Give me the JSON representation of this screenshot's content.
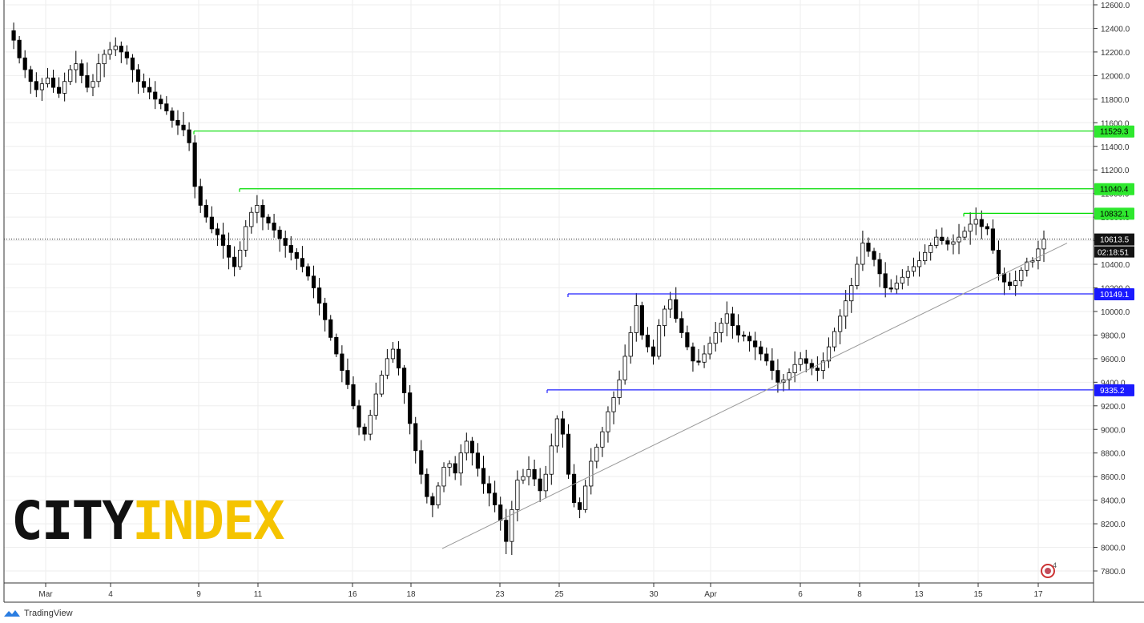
{
  "chart_data": {
    "type": "candlestick",
    "ylim": [
      7700,
      12600
    ],
    "y_ticks": [
      7800,
      8000,
      8200,
      8400,
      8600,
      8800,
      9000,
      9200,
      9400,
      9600,
      9800,
      10000,
      10200,
      10400,
      10600,
      10800,
      11000,
      11200,
      11400,
      11600,
      11800,
      12000,
      12200,
      12400,
      12600
    ],
    "x_tick_labels": [
      "Mar",
      "4",
      "9",
      "11",
      "16",
      "18",
      "23",
      "25",
      "30",
      "Apr",
      "6",
      "8",
      "13",
      "15",
      "17"
    ],
    "grid": true,
    "current_price": "10613.5",
    "countdown": "02:18:51",
    "levels": [
      {
        "value": 11529.3,
        "label": "11529.3",
        "color": "#00dd00",
        "type": "resistance"
      },
      {
        "value": 11040.4,
        "label": "11040.4",
        "color": "#00dd00",
        "type": "resistance"
      },
      {
        "value": 10832.1,
        "label": "10832.1",
        "color": "#00dd00",
        "type": "resistance"
      },
      {
        "value": 10149.1,
        "label": "10149.1",
        "color": "#2222ff",
        "type": "support"
      },
      {
        "value": 9335.2,
        "label": "9335.2",
        "color": "#2222ff",
        "type": "support"
      }
    ],
    "trendline": {
      "from": 7990,
      "to": 10580,
      "color": "#999999"
    },
    "close_path": [
      12380,
      12300,
      12150,
      12050,
      11950,
      11880,
      11930,
      11980,
      11900,
      11850,
      11950,
      12050,
      12100,
      12000,
      11900,
      11950,
      12100,
      12180,
      12220,
      12250,
      12200,
      12150,
      12050,
      11950,
      11900,
      11860,
      11800,
      11760,
      11700,
      11620,
      11580,
      11540,
      11430,
      11060,
      10900,
      10800,
      10700,
      10650,
      10560,
      10460,
      10380,
      10520,
      10720,
      10840,
      10900,
      10800,
      10750,
      10690,
      10620,
      10560,
      10500,
      10450,
      10380,
      10300,
      10200,
      10070,
      9930,
      9780,
      9640,
      9500,
      9380,
      9200,
      9020,
      8960,
      9120,
      9300,
      9460,
      9600,
      9680,
      9520,
      9310,
      9050,
      8820,
      8620,
      8430,
      8360,
      8520,
      8680,
      8710,
      8630,
      8800,
      8900,
      8800,
      8670,
      8540,
      8460,
      8360,
      8230,
      8050,
      8320,
      8570,
      8600,
      8660,
      8580,
      8480,
      8620,
      8860,
      9090,
      8960,
      8620,
      8380,
      8320,
      8520,
      8730,
      8850,
      8980,
      9150,
      9270,
      9420,
      9620,
      9820,
      10050,
      9800,
      9700,
      9620,
      9880,
      10020,
      10100,
      9940,
      9820,
      9700,
      9580,
      9570,
      9640,
      9730,
      9820,
      9900,
      9980,
      9880,
      9800,
      9790,
      9750,
      9700,
      9640,
      9580,
      9500,
      9400,
      9420,
      9480,
      9550,
      9600,
      9560,
      9520,
      9500,
      9580,
      9700,
      9830,
      9960,
      10090,
      10220,
      10400,
      10580,
      10510,
      10440,
      10320,
      10200,
      10190,
      10240,
      10290,
      10340,
      10380,
      10430,
      10500,
      10560,
      10630,
      10600,
      10570,
      10590,
      10630,
      10680,
      10740,
      10780,
      10720,
      10700,
      10520,
      10320,
      10250,
      10220,
      10260,
      10350,
      10420,
      10430,
      10530,
      10613.5
    ]
  },
  "brand": {
    "city": "CITY",
    "index": "INDEX"
  },
  "footer": {
    "name": "TradingView"
  },
  "annotation": {
    "count": "4"
  },
  "colors": {
    "bull": "#ffffff",
    "bear": "#000000",
    "axis": "#333333",
    "grid": "#eeeeee"
  }
}
